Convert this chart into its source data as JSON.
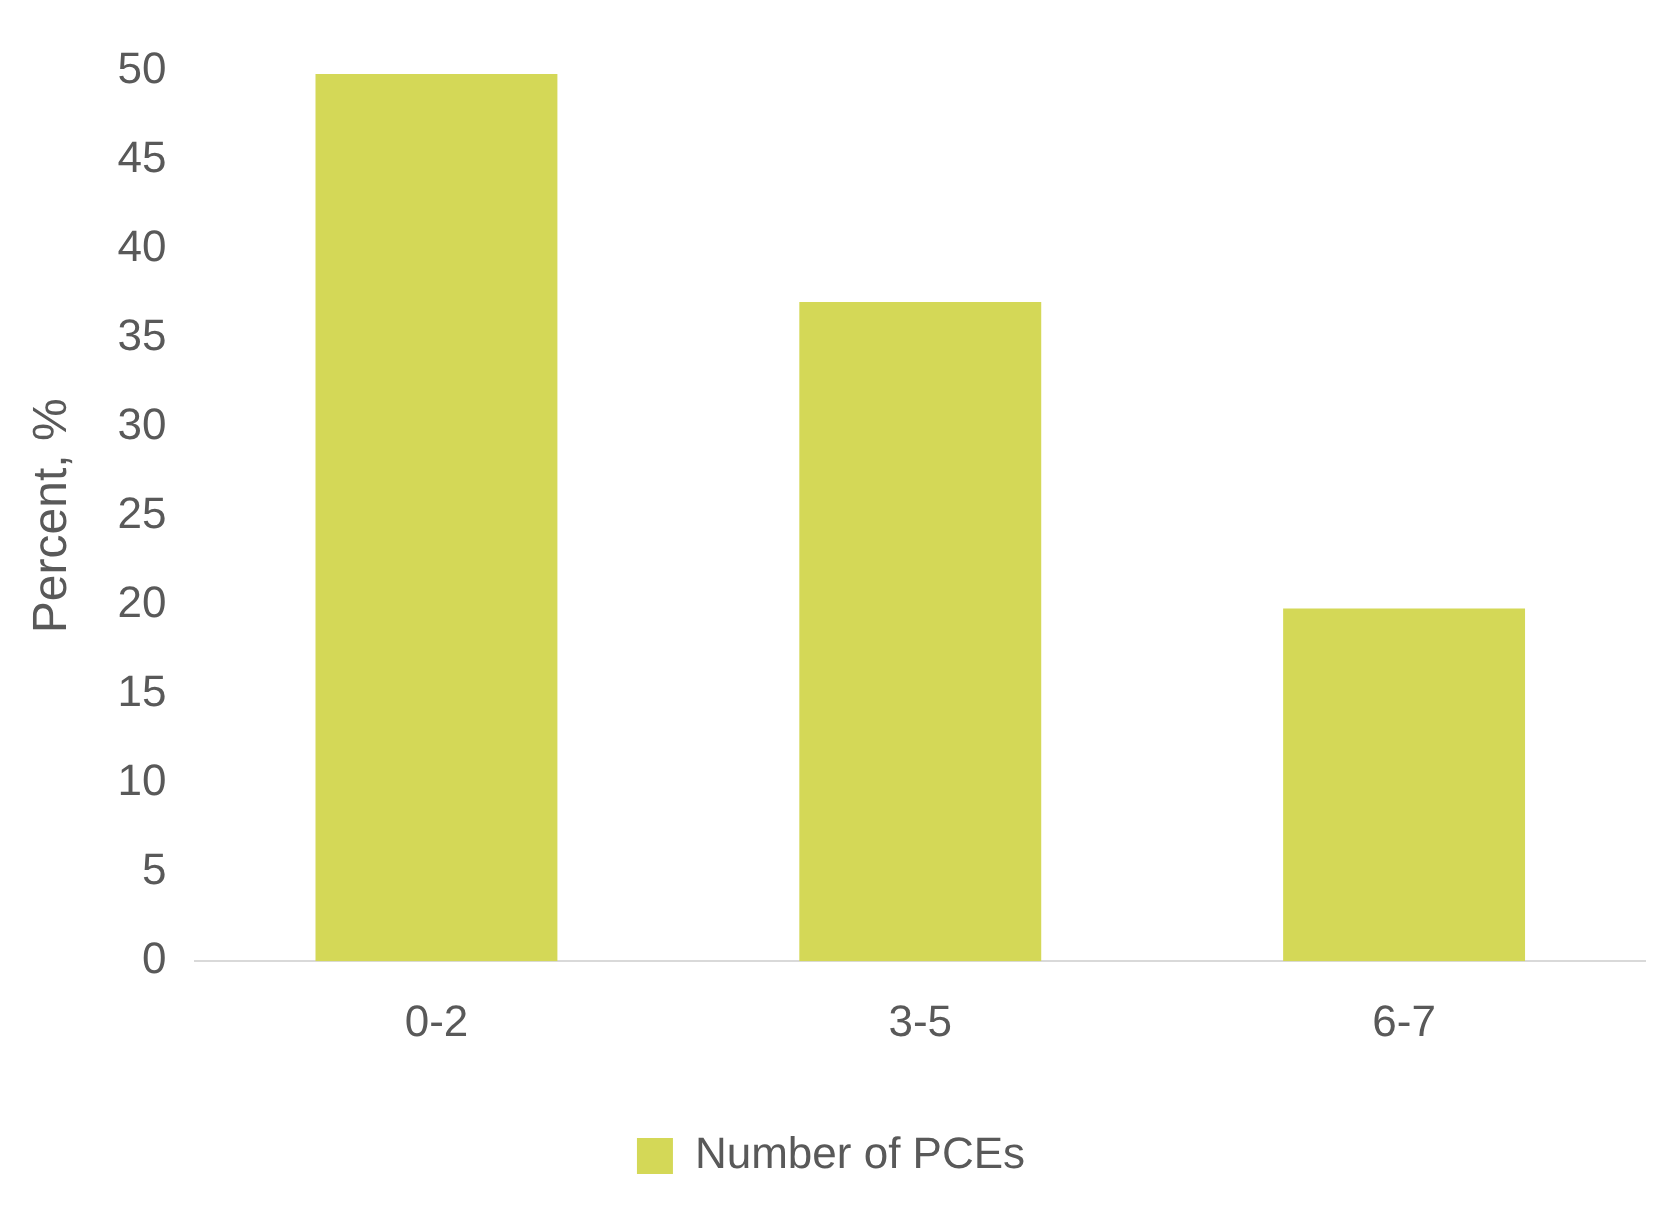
{
  "chart_data": {
    "type": "bar",
    "ylabel": "Percent, %",
    "categories": [
      "0-2",
      "3-5",
      "6-7"
    ],
    "series": [
      {
        "name": "Number of PCEs",
        "color": "#d4d857",
        "values": [
          49.8,
          37,
          19.8
        ]
      }
    ],
    "ylim": [
      0,
      50
    ],
    "yticks": [
      0,
      5,
      10,
      15,
      20,
      25,
      30,
      35,
      40,
      45,
      50
    ],
    "grid": false,
    "legend": "bottom"
  }
}
